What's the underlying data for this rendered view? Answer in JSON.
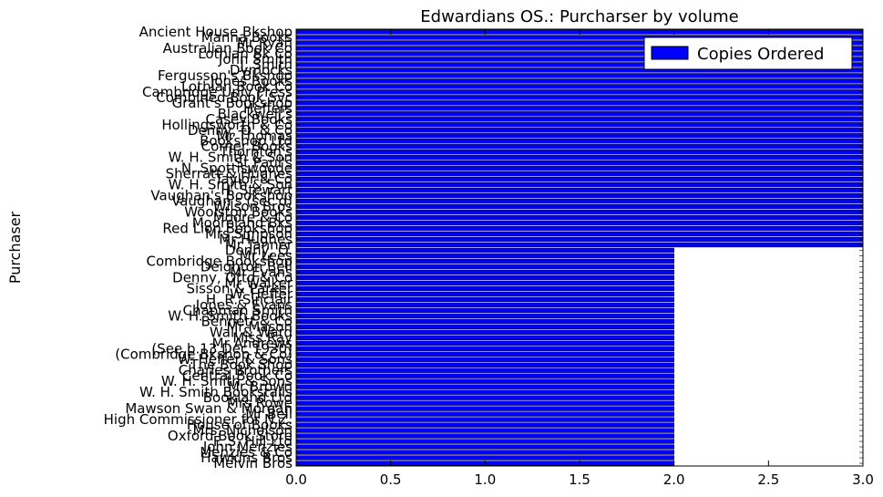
{
  "chart_data": {
    "type": "bar",
    "orientation": "horizontal",
    "title": "Edwardians OS.: Purcharser by volume",
    "xlabel": "",
    "ylabel": "Purchaser",
    "xlim": [
      0.0,
      3.0
    ],
    "xticks": [
      "0.0",
      "0.5",
      "1.0",
      "1.5",
      "2.0",
      "2.5",
      "3.0"
    ],
    "legend": {
      "position": "top-right",
      "entries": [
        "Copies Ordered"
      ]
    },
    "grid": false,
    "bar_color": "#0000ff",
    "categories": [
      "Ancient House Bkshop",
      "Manna Books",
      "Mr Ryan",
      "Australian Book Co",
      "Lothian Bk Co",
      "John Smith",
      "J. Smith",
      "Dymocks",
      "Fergusson's Bkshop",
      "Jones Books",
      "Lothian Book Co",
      "Cambridge Univ Press",
      "Combined Book Svc",
      "Grant's Bookshop",
      "Heffers",
      "Blackwell's",
      "Casey Books",
      "Hollingsworth & Co",
      "Denny, O. & Co",
      "Mr Thomas",
      "Bookshop Ltd",
      "Corner Books",
      "Thornton's",
      "W. H. Smith & Son",
      "St Paul's",
      "N. Spottiswoode",
      "Sherratt & Hughes",
      "Taylor & Co",
      "W. H. Smith & Son",
      "H. Stewart",
      "Vaughan's Bookshop",
      "Vaughan's (sec'd)",
      "Wilson Bros",
      "Woolston Books",
      "Moore & Co",
      "Mooreland Bks",
      "Red Lion Bookshop",
      "Mrs Simpson",
      "Mr Hughes",
      "Mr Tanner",
      "Denny, O.",
      "Mr Lees",
      "Combridge Bookshop",
      "Deighton Bell",
      "Mr Evans",
      "Denny, Otto & Co",
      "Mr Walker",
      "Sisson & Parker",
      "W. Heffer",
      "H. R. Sinclair",
      "Jones & Evans",
      "Chapman Smith",
      "W. H. Smith Books",
      "Bennett & Co",
      "Mr Mason",
      "Wall & Ward",
      "Miss Ray",
      "Mr Andrews",
      "(See b.13 Dec 1930)",
      "(Combridge Bkshop & Co)",
      "W. Heffer & Sons",
      "The Book Shop",
      "Charles Brothers",
      "Central Book Co",
      "W. H. Smith & Sons",
      "Mr Brown",
      "W. H. Smith Bookstalls",
      "Bookland Ltd",
      "Mrs Rowe",
      "Mawson Swan & Morgan",
      "Mr Bell",
      "High Commissioner for N.Z.",
      "House of Books",
      "Mrs. Nicholson",
      "Oxford Book Store",
      "F. S. Hill Ltd",
      "John Menzies",
      "Menzies & Co",
      "Hawkins Bros",
      "Melvin Bros"
    ],
    "values": [
      3,
      3,
      3,
      3,
      3,
      3,
      3,
      3,
      3,
      3,
      3,
      3,
      3,
      3,
      3,
      3,
      3,
      3,
      3,
      3,
      3,
      3,
      3,
      3,
      3,
      3,
      3,
      3,
      3,
      3,
      3,
      3,
      3,
      3,
      3,
      3,
      3,
      3,
      3,
      3,
      2,
      2,
      2,
      2,
      2,
      2,
      2,
      2,
      2,
      2,
      2,
      2,
      2,
      2,
      2,
      2,
      2,
      2,
      2,
      2,
      2,
      2,
      2,
      2,
      2,
      2,
      2,
      2,
      2,
      2,
      2,
      2,
      2,
      2,
      2,
      2,
      2,
      2,
      2,
      2
    ]
  }
}
